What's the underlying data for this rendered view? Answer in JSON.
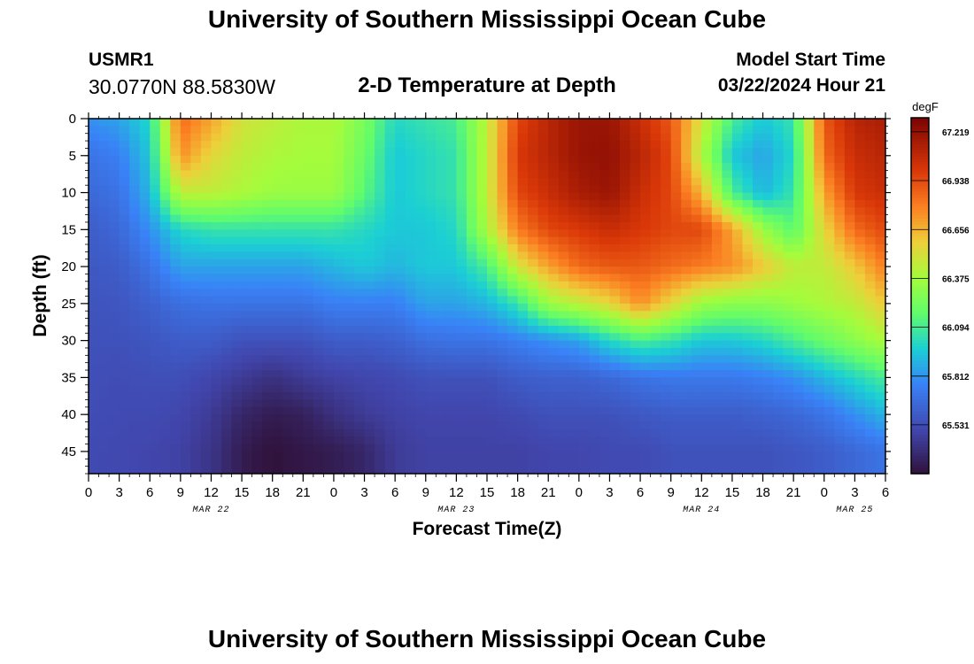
{
  "header": {
    "title": "University of Southern Mississippi Ocean Cube",
    "station_id": "USMR1",
    "coordinates": "30.0770N  88.5830W",
    "subtitle": "2-D Temperature at Depth",
    "model_start_label": "Model Start Time",
    "model_start_value": "03/22/2024 Hour 21"
  },
  "footer": {
    "title": "University of Southern Mississippi Ocean Cube"
  },
  "chart_data": {
    "type": "heatmap",
    "title": "2-D Temperature at Depth",
    "xlabel": "Forecast Time(Z)",
    "ylabel": "Depth (ft)",
    "colorbar_unit": "degF",
    "colorbar_ticks": [
      "67.219",
      "66.938",
      "66.656",
      "66.375",
      "66.094",
      "65.812",
      "65.531"
    ],
    "colorbar_range": [
      65.25,
      67.3
    ],
    "x_tick_labels": [
      "0",
      "3",
      "6",
      "9",
      "12",
      "15",
      "18",
      "21",
      "0",
      "3",
      "6",
      "9",
      "12",
      "15",
      "18",
      "21",
      "0",
      "3",
      "6",
      "9",
      "12",
      "15",
      "18",
      "21",
      "0",
      "3",
      "6"
    ],
    "date_labels": [
      {
        "label": "MAR 22",
        "at_hour": 12
      },
      {
        "label": "MAR 23",
        "at_hour": 36
      },
      {
        "label": "MAR 24",
        "at_hour": 60
      },
      {
        "label": "MAR 25",
        "at_hour": 75
      }
    ],
    "xlim": [
      0,
      78
    ],
    "y_ticks": [
      0,
      5,
      10,
      15,
      20,
      25,
      30,
      35,
      40,
      45
    ],
    "ylim": [
      0,
      48
    ],
    "x_hours": [
      0,
      3,
      6,
      9,
      12,
      15,
      18,
      21,
      24,
      27,
      30,
      33,
      36,
      39,
      42,
      45,
      48,
      51,
      54,
      57,
      60,
      63,
      66,
      69,
      72,
      75,
      78
    ],
    "depths_ft": [
      0,
      5,
      10,
      15,
      20,
      25,
      30,
      35,
      40,
      45,
      48
    ],
    "temperature_degF": [
      [
        65.8,
        65.7,
        65.65,
        65.6,
        65.58,
        65.56,
        65.55,
        65.54,
        65.53,
        65.52,
        65.52
      ],
      [
        65.85,
        65.75,
        65.7,
        65.65,
        65.6,
        65.57,
        65.55,
        65.53,
        65.52,
        65.51,
        65.51
      ],
      [
        66.0,
        65.95,
        65.9,
        65.8,
        65.7,
        65.62,
        65.57,
        65.54,
        65.52,
        65.5,
        65.5
      ],
      [
        66.85,
        66.75,
        66.45,
        66.0,
        65.85,
        65.68,
        65.6,
        65.54,
        65.5,
        65.48,
        65.48
      ],
      [
        66.7,
        66.55,
        66.45,
        66.05,
        65.85,
        65.7,
        65.6,
        65.5,
        65.45,
        65.42,
        65.42
      ],
      [
        66.5,
        66.45,
        66.4,
        66.05,
        65.85,
        65.7,
        65.55,
        65.45,
        65.35,
        65.3,
        65.3
      ],
      [
        66.45,
        66.4,
        66.35,
        66.05,
        65.85,
        65.7,
        65.55,
        65.4,
        65.3,
        65.25,
        65.25
      ],
      [
        66.4,
        66.38,
        66.35,
        66.05,
        65.85,
        65.7,
        65.55,
        65.45,
        65.32,
        65.28,
        65.28
      ],
      [
        66.4,
        66.38,
        66.35,
        66.05,
        65.9,
        65.75,
        65.6,
        65.48,
        65.4,
        65.3,
        65.3
      ],
      [
        66.25,
        66.2,
        66.15,
        66.0,
        65.95,
        65.75,
        65.6,
        65.5,
        65.45,
        65.35,
        65.35
      ],
      [
        66.0,
        65.95,
        65.95,
        65.95,
        65.9,
        65.75,
        65.62,
        65.52,
        65.48,
        65.45,
        65.45
      ],
      [
        66.05,
        66.0,
        66.0,
        65.95,
        65.95,
        65.85,
        65.68,
        65.55,
        65.5,
        65.48,
        65.48
      ],
      [
        66.1,
        66.05,
        66.05,
        66.0,
        65.95,
        65.85,
        65.7,
        65.55,
        65.5,
        65.48,
        65.48
      ],
      [
        66.45,
        66.45,
        66.45,
        66.4,
        66.1,
        65.9,
        65.7,
        65.55,
        65.5,
        65.48,
        65.48
      ],
      [
        66.95,
        67.0,
        66.95,
        66.8,
        66.5,
        66.05,
        65.75,
        65.6,
        65.52,
        65.48,
        65.48
      ],
      [
        67.1,
        67.1,
        67.05,
        66.95,
        66.7,
        66.35,
        65.8,
        65.62,
        65.55,
        65.5,
        65.5
      ],
      [
        67.2,
        67.2,
        67.15,
        67.0,
        66.85,
        66.45,
        65.85,
        65.62,
        65.55,
        65.5,
        65.5
      ],
      [
        67.2,
        67.22,
        67.2,
        67.05,
        66.9,
        66.55,
        66.0,
        65.65,
        65.55,
        65.52,
        65.52
      ],
      [
        67.05,
        67.1,
        67.05,
        67.0,
        66.9,
        66.75,
        66.1,
        65.7,
        65.58,
        65.52,
        65.52
      ],
      [
        66.9,
        66.95,
        66.95,
        66.95,
        66.85,
        66.55,
        66.05,
        65.72,
        65.6,
        65.55,
        65.55
      ],
      [
        66.5,
        66.4,
        66.65,
        66.95,
        66.8,
        66.35,
        65.95,
        65.72,
        65.6,
        65.55,
        65.55
      ],
      [
        66.1,
        65.95,
        66.1,
        66.7,
        66.75,
        66.3,
        65.95,
        65.72,
        65.6,
        65.55,
        65.55
      ],
      [
        65.95,
        65.85,
        65.9,
        66.35,
        66.6,
        66.3,
        66.0,
        65.75,
        65.62,
        65.55,
        65.55
      ],
      [
        66.05,
        66.0,
        66.05,
        66.15,
        66.45,
        66.35,
        66.1,
        65.8,
        65.65,
        65.57,
        65.57
      ],
      [
        66.9,
        66.85,
        66.7,
        66.55,
        66.45,
        66.4,
        66.2,
        65.9,
        65.7,
        65.6,
        65.6
      ],
      [
        67.1,
        67.05,
        67.0,
        66.85,
        66.6,
        66.45,
        66.3,
        66.0,
        65.8,
        65.65,
        65.65
      ],
      [
        67.15,
        67.1,
        67.05,
        66.95,
        66.8,
        66.6,
        66.4,
        66.1,
        65.9,
        65.7,
        65.7
      ]
    ]
  }
}
